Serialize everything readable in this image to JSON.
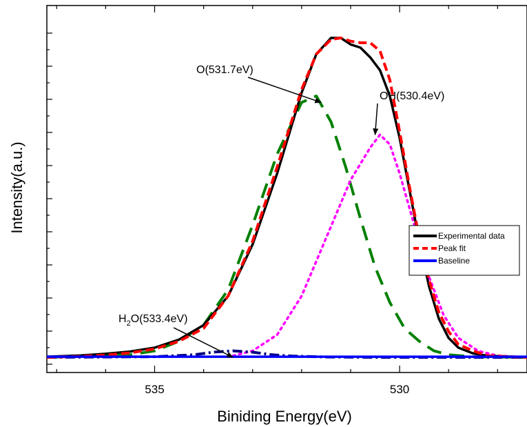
{
  "chart_data": {
    "type": "line",
    "title": "",
    "xlabel": "Biniding Energy(eV)",
    "ylabel": "Intensity(a.u.)",
    "xlim": [
      537.2,
      527.4
    ],
    "x_reversed": true,
    "ylim": [
      0,
      1.05
    ],
    "y_tick_labels_shown": false,
    "x_ticks": [
      535,
      530
    ],
    "grid": false,
    "legend_position": "right",
    "legend": [
      "Experimental data",
      "Peak fit",
      "Baseline"
    ],
    "series": [
      {
        "name": "Experimental data",
        "color": "#000000",
        "style": "solid",
        "x": [
          537.2,
          536.5,
          536.0,
          535.5,
          535.0,
          534.5,
          534.0,
          533.5,
          533.0,
          532.5,
          532.0,
          531.7,
          531.4,
          531.2,
          531.0,
          530.8,
          530.6,
          530.4,
          530.2,
          530.0,
          529.8,
          529.6,
          529.4,
          529.2,
          529.0,
          528.8,
          528.5,
          528.2,
          527.4
        ],
        "y": [
          0.012,
          0.016,
          0.021,
          0.028,
          0.04,
          0.065,
          0.11,
          0.2,
          0.36,
          0.58,
          0.83,
          0.95,
          1.0,
          1.0,
          0.98,
          0.97,
          0.94,
          0.9,
          0.82,
          0.69,
          0.53,
          0.37,
          0.23,
          0.13,
          0.07,
          0.04,
          0.022,
          0.015,
          0.01
        ]
      },
      {
        "name": "Peak fit",
        "color": "#ff0000",
        "style": "dashed",
        "x": [
          537.2,
          536.5,
          536.0,
          535.5,
          535.0,
          534.5,
          534.0,
          533.5,
          533.0,
          532.5,
          532.0,
          531.7,
          531.4,
          531.2,
          531.0,
          530.8,
          530.6,
          530.4,
          530.2,
          530.0,
          529.8,
          529.6,
          529.4,
          529.2,
          529.0,
          528.8,
          528.5,
          528.2,
          527.4
        ],
        "y": [
          0.01,
          0.013,
          0.017,
          0.024,
          0.036,
          0.06,
          0.1,
          0.2,
          0.37,
          0.6,
          0.84,
          0.95,
          0.995,
          1.0,
          0.99,
          0.985,
          0.985,
          0.96,
          0.87,
          0.71,
          0.54,
          0.38,
          0.25,
          0.15,
          0.09,
          0.05,
          0.03,
          0.015,
          0.01
        ]
      },
      {
        "color": "#0000ff",
        "style": "solid",
        "x": [
          537.2,
          527.4
        ],
        "y": [
          0.012,
          0.012
        ]
      },
      {
        "color": "#008000",
        "style": "long-dash",
        "x": [
          537.2,
          535.5,
          535.0,
          534.5,
          534.0,
          533.5,
          533.0,
          532.5,
          532.0,
          531.7,
          531.4,
          531.1,
          530.8,
          530.5,
          530.2,
          529.9,
          529.6,
          529.3,
          529.0,
          528.5,
          527.4
        ],
        "y": [
          0.01,
          0.018,
          0.03,
          0.06,
          0.11,
          0.22,
          0.42,
          0.64,
          0.8,
          0.82,
          0.74,
          0.6,
          0.44,
          0.29,
          0.18,
          0.1,
          0.06,
          0.03,
          0.018,
          0.012,
          0.01
        ]
      },
      {
        "color": "#ff00ff",
        "style": "dotted",
        "x": [
          533.4,
          533.0,
          532.5,
          532.0,
          531.5,
          531.0,
          530.6,
          530.4,
          530.2,
          530.0,
          529.7,
          529.4,
          529.1,
          528.8,
          528.4,
          528.0,
          527.4
        ],
        "y": [
          0.015,
          0.03,
          0.08,
          0.2,
          0.38,
          0.56,
          0.66,
          0.7,
          0.67,
          0.58,
          0.42,
          0.26,
          0.14,
          0.07,
          0.03,
          0.015,
          0.01
        ]
      },
      {
        "color": "#000080",
        "style": "dash-dot",
        "x": [
          537.2,
          535.0,
          534.2,
          533.8,
          533.4,
          533.0,
          532.6,
          532.2,
          531.5,
          530.5,
          527.4
        ],
        "y": [
          0.01,
          0.012,
          0.018,
          0.026,
          0.03,
          0.026,
          0.018,
          0.014,
          0.011,
          0.01,
          0.01
        ]
      }
    ],
    "annotations": [
      {
        "text_main": "O(531.7eV)",
        "target_x": 531.6,
        "target_y": 0.8
      },
      {
        "text_main": "OH(530.4eV)",
        "target_x": 530.5,
        "target_y": 0.7
      },
      {
        "text_pre": "H",
        "text_sub": "2",
        "text_post": "O(533.4eV)",
        "target_x": 533.4,
        "target_y": 0.01
      }
    ]
  }
}
